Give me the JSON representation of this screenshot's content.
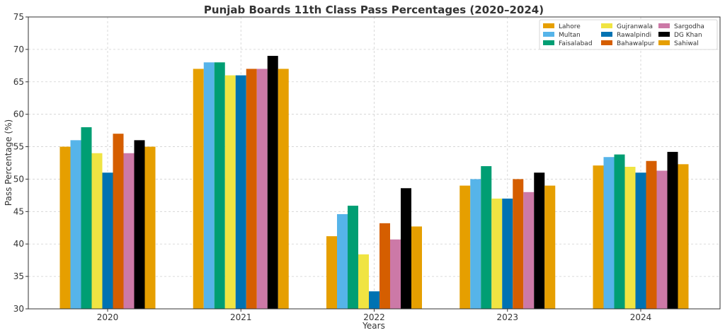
{
  "chart_data": {
    "type": "bar",
    "title": "Punjab Boards 11th Class Pass Percentages (2020–2024)",
    "xlabel": "Years",
    "ylabel": "Pass Percentage (%)",
    "ylim": [
      30,
      75
    ],
    "yticks": [
      30,
      35,
      40,
      45,
      50,
      55,
      60,
      65,
      70,
      75
    ],
    "grid": true,
    "legend_position": "top-right",
    "categories": [
      "2020",
      "2021",
      "2022",
      "2023",
      "2024"
    ],
    "series": [
      {
        "name": "Lahore",
        "color": "#E69F00",
        "values": [
          55,
          67,
          41.2,
          49,
          52.1
        ]
      },
      {
        "name": "Multan",
        "color": "#56B4E9",
        "values": [
          56,
          68,
          44.6,
          50,
          53.4
        ]
      },
      {
        "name": "Faisalabad",
        "color": "#009E73",
        "values": [
          58,
          68,
          45.9,
          52,
          53.8
        ]
      },
      {
        "name": "Gujranwala",
        "color": "#F0E442",
        "values": [
          54,
          66,
          38.4,
          47,
          51.9
        ]
      },
      {
        "name": "Rawalpindi",
        "color": "#0072B2",
        "values": [
          51,
          66,
          32.7,
          47,
          51.0
        ]
      },
      {
        "name": "Bahawalpur",
        "color": "#D55E00",
        "values": [
          57,
          67,
          43.2,
          50,
          52.8
        ]
      },
      {
        "name": "Sargodha",
        "color": "#CC79A7",
        "values": [
          54,
          67,
          40.7,
          48,
          51.3
        ]
      },
      {
        "name": "DG Khan",
        "color": "#000000",
        "values": [
          56,
          69,
          48.6,
          51,
          54.2
        ]
      },
      {
        "name": "Sahiwal",
        "color": "#E69F00",
        "values": [
          55,
          67,
          42.7,
          49,
          52.3
        ]
      }
    ]
  }
}
